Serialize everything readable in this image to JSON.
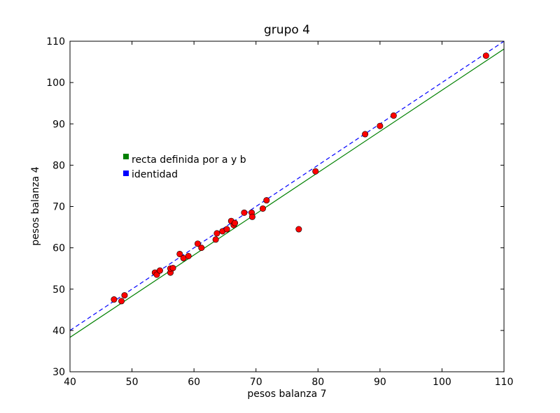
{
  "chart_data": {
    "type": "scatter",
    "title": "grupo 4",
    "xlabel": "pesos balanza 7",
    "ylabel": "pesos balanza 4",
    "xlim": [
      40,
      110
    ],
    "ylim": [
      30,
      110
    ],
    "xticks": [
      40,
      50,
      60,
      70,
      80,
      90,
      100,
      110
    ],
    "yticks": [
      30,
      40,
      50,
      60,
      70,
      80,
      90,
      100,
      110
    ],
    "grid": false,
    "legend_placement": "center-left",
    "points": [
      [
        47.1,
        47.5
      ],
      [
        48.3,
        47.1
      ],
      [
        48.8,
        48.5
      ],
      [
        53.7,
        54.0
      ],
      [
        54.0,
        53.5
      ],
      [
        54.5,
        54.5
      ],
      [
        56.2,
        54.0
      ],
      [
        56.2,
        55.0
      ],
      [
        56.6,
        55.1
      ],
      [
        57.7,
        58.5
      ],
      [
        58.3,
        57.5
      ],
      [
        59.1,
        58.0
      ],
      [
        60.6,
        61.0
      ],
      [
        61.2,
        60.0
      ],
      [
        63.5,
        62.0
      ],
      [
        63.7,
        63.5
      ],
      [
        64.6,
        64.0
      ],
      [
        65.3,
        64.5
      ],
      [
        66.0,
        66.5
      ],
      [
        66.4,
        65.5
      ],
      [
        66.6,
        66.0
      ],
      [
        68.1,
        68.5
      ],
      [
        69.3,
        68.5
      ],
      [
        69.4,
        67.5
      ],
      [
        71.1,
        69.5
      ],
      [
        71.7,
        71.5
      ],
      [
        76.9,
        64.5
      ],
      [
        79.6,
        78.5
      ],
      [
        87.6,
        87.5
      ],
      [
        90.0,
        89.5
      ],
      [
        92.2,
        92.0
      ],
      [
        107.1,
        106.5
      ]
    ],
    "lines": [
      {
        "name": "recta definida por a y b",
        "color": "#008000",
        "dash": "solid",
        "a": -1.55,
        "b": 0.997
      },
      {
        "name": "identidad",
        "color": "#0000ff",
        "dash": "dashed",
        "a": 0,
        "b": 1
      }
    ],
    "colors": {
      "points": "#ff0000",
      "point_edge": "#000000"
    }
  }
}
